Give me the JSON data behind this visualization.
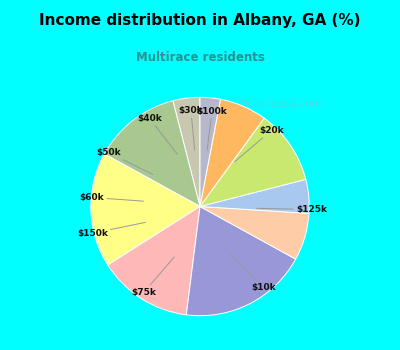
{
  "title": "Income distribution in Albany, GA (%)",
  "subtitle": "Multirace residents",
  "watermark": "©City-Data.com",
  "background_top": "#00FFFF",
  "background_chart_tl": "#d8f0e8",
  "background_chart_br": "#e8f8f0",
  "title_color": "#000000",
  "subtitle_color": "#2a9090",
  "labels": [
    "$100k",
    "$20k",
    "$125k",
    "$10k",
    "$75k",
    "$150k",
    "$60k",
    "$50k",
    "$40k",
    "$30k"
  ],
  "values": [
    4,
    13,
    17,
    14,
    19,
    7,
    5,
    11,
    7,
    3
  ],
  "colors": [
    "#c8c8b0",
    "#a8c890",
    "#ffff88",
    "#ffb8b8",
    "#9898d8",
    "#ffcca8",
    "#a8c8f0",
    "#c8e870",
    "#ffb860",
    "#b8b8cc"
  ],
  "start_angle": 90
}
